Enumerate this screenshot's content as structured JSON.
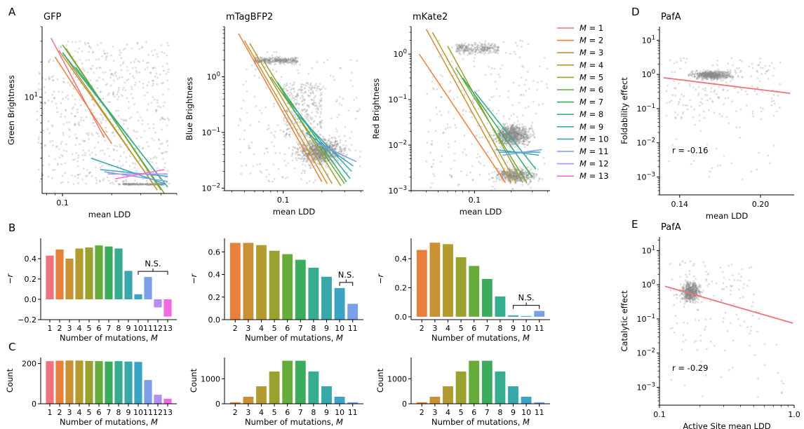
{
  "figure": {
    "panel_letters": [
      "A",
      "B",
      "C",
      "D",
      "E"
    ]
  },
  "legend": {
    "entries": [
      "M = 1",
      "M = 2",
      "M = 3",
      "M = 4",
      "M = 5",
      "M = 6",
      "M = 7",
      "M = 8",
      "M = 9",
      "M = 10",
      "M = 11",
      "M = 12",
      "M = 13"
    ],
    "colors": [
      "#f0727f",
      "#e6803a",
      "#c99136",
      "#b39b2f",
      "#9aa22f",
      "#66ac3a",
      "#3aac5c",
      "#36ad8f",
      "#38a8aa",
      "#3ba4c5",
      "#7a9ee8",
      "#b48ef0",
      "#f26ae0"
    ]
  },
  "chart_data": [
    {
      "id": "A-GFP",
      "type": "scatter",
      "title": "GFP",
      "xlabel": "mean LDD",
      "ylabel": "Green Brightness",
      "xscale": "log",
      "yscale": "log",
      "xlim": [
        0.075,
        0.5
      ],
      "ylim": [
        1.5,
        40
      ],
      "xticks": [
        {
          "v": 0.1,
          "label": "0.1"
        }
      ],
      "yticks": [
        {
          "v": 10,
          "label": "10^1"
        }
      ],
      "clusters": [
        {
          "x": [
            0.07,
            0.45
          ],
          "y": [
            1.8,
            30
          ],
          "n": 650,
          "kind": "spread"
        },
        {
          "x": [
            0.22,
            0.42
          ],
          "y": [
            1.75,
            1.85
          ],
          "n": 160,
          "kind": "band"
        }
      ],
      "series": [
        {
          "m": 1,
          "x1": 0.085,
          "y1": 32,
          "x2": 0.18,
          "y2": 4.5
        },
        {
          "m": 2,
          "x1": 0.09,
          "y1": 22,
          "x2": 0.2,
          "y2": 4.0
        },
        {
          "m": 3,
          "x1": 0.095,
          "y1": 25,
          "x2": 0.36,
          "y2": 1.8
        },
        {
          "m": 4,
          "x1": 0.1,
          "y1": 24,
          "x2": 0.38,
          "y2": 1.6
        },
        {
          "m": 5,
          "x1": 0.105,
          "y1": 26,
          "x2": 0.4,
          "y2": 1.6
        },
        {
          "m": 6,
          "x1": 0.1,
          "y1": 28,
          "x2": 0.42,
          "y2": 1.5
        },
        {
          "m": 7,
          "x1": 0.12,
          "y1": 18,
          "x2": 0.4,
          "y2": 2.0
        },
        {
          "m": 8,
          "x1": 0.1,
          "y1": 24,
          "x2": 0.44,
          "y2": 1.7
        },
        {
          "m": 9,
          "x1": 0.15,
          "y1": 3.0,
          "x2": 0.43,
          "y2": 1.8
        },
        {
          "m": 10,
          "x1": 0.17,
          "y1": 2.4,
          "x2": 0.44,
          "y2": 2.1
        },
        {
          "m": 11,
          "x1": 0.18,
          "y1": 2.3,
          "x2": 0.44,
          "y2": 1.9
        },
        {
          "m": 12,
          "x1": 0.19,
          "y1": 2.2,
          "x2": 0.44,
          "y2": 2.2
        },
        {
          "m": 13,
          "x1": 0.21,
          "y1": 2.0,
          "x2": 0.42,
          "y2": 2.4
        }
      ]
    },
    {
      "id": "A-mTagBFP2",
      "type": "scatter",
      "title": "mTagBFP2",
      "xlabel": "mean LDD",
      "ylabel": "Blue Brightness",
      "xscale": "log",
      "yscale": "log",
      "xlim": [
        0.035,
        0.42
      ],
      "ylim": [
        0.009,
        8
      ],
      "xticks": [
        {
          "v": 0.1,
          "label": "0.1"
        }
      ],
      "yticks": [
        {
          "v": 0.01,
          "label": "10^-2"
        },
        {
          "v": 0.1,
          "label": "10^-1"
        },
        {
          "v": 1,
          "label": "10^0"
        }
      ],
      "clusters": [
        {
          "x": [
            0.06,
            0.13
          ],
          "y": [
            1.5,
            2.6
          ],
          "n": 300,
          "kind": "band"
        },
        {
          "x": [
            0.1,
            0.38
          ],
          "y": [
            0.02,
            0.1
          ],
          "n": 900,
          "kind": "blob"
        },
        {
          "x": [
            0.1,
            0.2
          ],
          "y": [
            0.08,
            0.8
          ],
          "n": 300,
          "kind": "spread"
        },
        {
          "x": [
            0.045,
            0.4
          ],
          "y": [
            0.012,
            3
          ],
          "n": 200,
          "kind": "spread"
        }
      ],
      "series": [
        {
          "m": 2,
          "x1": 0.045,
          "y1": 6,
          "x2": 0.2,
          "y2": 0.013
        },
        {
          "m": 3,
          "x1": 0.05,
          "y1": 4.5,
          "x2": 0.22,
          "y2": 0.012
        },
        {
          "m": 4,
          "x1": 0.055,
          "y1": 4,
          "x2": 0.24,
          "y2": 0.012
        },
        {
          "m": 5,
          "x1": 0.07,
          "y1": 2,
          "x2": 0.28,
          "y2": 0.011
        },
        {
          "m": 6,
          "x1": 0.08,
          "y1": 1.0,
          "x2": 0.3,
          "y2": 0.012
        },
        {
          "m": 7,
          "x1": 0.09,
          "y1": 0.8,
          "x2": 0.31,
          "y2": 0.013
        },
        {
          "m": 8,
          "x1": 0.1,
          "y1": 0.5,
          "x2": 0.33,
          "y2": 0.015
        },
        {
          "m": 9,
          "x1": 0.12,
          "y1": 0.25,
          "x2": 0.34,
          "y2": 0.02
        },
        {
          "m": 10,
          "x1": 0.15,
          "y1": 0.1,
          "x2": 0.35,
          "y2": 0.025
        },
        {
          "m": 11,
          "x1": 0.18,
          "y1": 0.065,
          "x2": 0.37,
          "y2": 0.03
        }
      ]
    },
    {
      "id": "A-mKate2",
      "type": "scatter",
      "title": "mKate2",
      "xlabel": "mean LDD",
      "ylabel": "Red Brightness",
      "xscale": "log",
      "yscale": "log",
      "xlim": [
        0.03,
        0.42
      ],
      "ylim": [
        0.001,
        4
      ],
      "xticks": [
        {
          "v": 0.1,
          "label": "0.1"
        }
      ],
      "yticks": [
        {
          "v": 0.001,
          "label": "10^-3"
        },
        {
          "v": 0.01,
          "label": "10^-2"
        },
        {
          "v": 0.1,
          "label": "10^-1"
        },
        {
          "v": 1,
          "label": "10^0"
        }
      ],
      "clusters": [
        {
          "x": [
            0.07,
            0.16
          ],
          "y": [
            0.8,
            2.2
          ],
          "n": 260,
          "kind": "band"
        },
        {
          "x": [
            0.12,
            0.35
          ],
          "y": [
            0.007,
            0.04
          ],
          "n": 800,
          "kind": "blob"
        },
        {
          "x": [
            0.12,
            0.38
          ],
          "y": [
            0.0012,
            0.004
          ],
          "n": 500,
          "kind": "blob"
        },
        {
          "x": [
            0.04,
            0.4
          ],
          "y": [
            0.001,
            2
          ],
          "n": 260,
          "kind": "spread"
        }
      ],
      "series": [
        {
          "m": 2,
          "x1": 0.035,
          "y1": 1.0,
          "x2": 0.18,
          "y2": 0.0015
        },
        {
          "m": 3,
          "x1": 0.04,
          "y1": 3.5,
          "x2": 0.2,
          "y2": 0.0015
        },
        {
          "m": 4,
          "x1": 0.045,
          "y1": 3.0,
          "x2": 0.22,
          "y2": 0.0015
        },
        {
          "m": 5,
          "x1": 0.06,
          "y1": 1.5,
          "x2": 0.25,
          "y2": 0.0015
        },
        {
          "m": 6,
          "x1": 0.07,
          "y1": 0.5,
          "x2": 0.27,
          "y2": 0.0015
        },
        {
          "m": 7,
          "x1": 0.08,
          "y1": 0.3,
          "x2": 0.3,
          "y2": 0.002
        },
        {
          "m": 8,
          "x1": 0.1,
          "y1": 0.15,
          "x2": 0.32,
          "y2": 0.003
        },
        {
          "m": 9,
          "x1": 0.15,
          "y1": 0.008,
          "x2": 0.34,
          "y2": 0.006
        },
        {
          "m": 10,
          "x1": 0.16,
          "y1": 0.007,
          "x2": 0.35,
          "y2": 0.007
        },
        {
          "m": 11,
          "x1": 0.17,
          "y1": 0.006,
          "x2": 0.36,
          "y2": 0.008
        }
      ]
    },
    {
      "id": "B-GFP",
      "type": "bar",
      "xlabel": "Number of mutations, M",
      "ylabel": "−r",
      "categories": [
        "1",
        "2",
        "3",
        "4",
        "5",
        "6",
        "7",
        "8",
        "9",
        "10",
        "11",
        "12",
        "13"
      ],
      "values": [
        0.43,
        0.49,
        0.4,
        0.5,
        0.51,
        0.53,
        0.52,
        0.5,
        0.28,
        0.05,
        0.22,
        -0.08,
        -0.17
      ],
      "ylim": [
        -0.2,
        0.6
      ],
      "yticks": [
        {
          "v": -0.2,
          "label": "−0.2"
        },
        {
          "v": 0.0,
          "label": "0.0"
        },
        {
          "v": 0.2,
          "label": "0.2"
        },
        {
          "v": 0.4,
          "label": "0.4"
        }
      ],
      "annotation": {
        "text": "N.S.",
        "from": 9,
        "to": 12
      }
    },
    {
      "id": "B-mTagBFP2",
      "type": "bar",
      "xlabel": "Number of mutations, M",
      "ylabel": "−r",
      "categories": [
        "2",
        "3",
        "4",
        "5",
        "6",
        "7",
        "8",
        "9",
        "10",
        "11"
      ],
      "values": [
        0.68,
        0.68,
        0.66,
        0.61,
        0.58,
        0.53,
        0.46,
        0.38,
        0.28,
        0.14
      ],
      "ylim": [
        0.0,
        0.72
      ],
      "yticks": [
        {
          "v": 0.0,
          "label": "0.0"
        },
        {
          "v": 0.2,
          "label": "0.2"
        },
        {
          "v": 0.4,
          "label": "0.4"
        },
        {
          "v": 0.6,
          "label": "0.6"
        }
      ],
      "annotation": {
        "text": "N.S.",
        "from": 8,
        "to": 9
      }
    },
    {
      "id": "B-mKate2",
      "type": "bar",
      "xlabel": "Number of mutations, M",
      "ylabel": "−r",
      "categories": [
        "2",
        "3",
        "4",
        "5",
        "6",
        "7",
        "8",
        "9",
        "10",
        "11"
      ],
      "values": [
        0.46,
        0.51,
        0.5,
        0.41,
        0.35,
        0.26,
        0.14,
        0.01,
        0.005,
        0.04
      ],
      "ylim": [
        -0.02,
        0.54
      ],
      "yticks": [
        {
          "v": 0.0,
          "label": "0.0"
        },
        {
          "v": 0.2,
          "label": "0.2"
        },
        {
          "v": 0.4,
          "label": "0.4"
        }
      ],
      "annotation": {
        "text": "N.S.",
        "from": 7,
        "to": 9
      }
    },
    {
      "id": "C-GFP",
      "type": "bar",
      "xlabel": "Number of mutations, M",
      "ylabel": "Count",
      "categories": [
        "1",
        "2",
        "3",
        "4",
        "5",
        "6",
        "7",
        "8",
        "9",
        "10",
        "11",
        "12",
        "13"
      ],
      "values": [
        212,
        214,
        215,
        215,
        213,
        212,
        210,
        212,
        210,
        208,
        118,
        45,
        25
      ],
      "ylim": [
        0,
        230
      ],
      "yticks": [
        {
          "v": 0,
          "label": "0"
        },
        {
          "v": 200,
          "label": "200"
        }
      ]
    },
    {
      "id": "C-mTagBFP2",
      "type": "bar",
      "xlabel": "Number of mutations, M",
      "ylabel": "Count",
      "categories": [
        "2",
        "3",
        "4",
        "5",
        "6",
        "7",
        "8",
        "9",
        "10",
        "11"
      ],
      "values": [
        60,
        280,
        700,
        1290,
        1720,
        1720,
        1290,
        700,
        280,
        60
      ],
      "ylim": [
        0,
        1850
      ],
      "yticks": [
        {
          "v": 0,
          "label": "0"
        },
        {
          "v": 1000,
          "label": "1000"
        }
      ]
    },
    {
      "id": "C-mKate2",
      "type": "bar",
      "xlabel": "Number of mutations, M",
      "ylabel": "Count",
      "categories": [
        "2",
        "3",
        "4",
        "5",
        "6",
        "7",
        "8",
        "9",
        "10",
        "11"
      ],
      "values": [
        60,
        280,
        700,
        1290,
        1720,
        1720,
        1290,
        700,
        280,
        60
      ],
      "ylim": [
        0,
        1850
      ],
      "yticks": [
        {
          "v": 0,
          "label": "0"
        },
        {
          "v": 1000,
          "label": "1000"
        }
      ]
    },
    {
      "id": "D",
      "type": "scatter",
      "title": "PafA",
      "xlabel": "mean LDD",
      "ylabel": "Foldability effect",
      "xscale": "linear",
      "yscale": "log",
      "xlim": [
        0.125,
        0.225
      ],
      "ylim": [
        0.0003,
        25
      ],
      "xticks": [
        {
          "v": 0.14,
          "label": "0.14"
        },
        {
          "v": 0.2,
          "label": "0.20"
        }
      ],
      "yticks": [
        {
          "v": 0.001,
          "label": "10^-3"
        },
        {
          "v": 0.01,
          "label": "10^-2"
        },
        {
          "v": 0.1,
          "label": "10^-1"
        },
        {
          "v": 1,
          "label": "10^0"
        },
        {
          "v": 10,
          "label": "10^1"
        }
      ],
      "clusters": [
        {
          "x": [
            0.14,
            0.19
          ],
          "y": [
            0.6,
            1.5
          ],
          "n": 500,
          "kind": "blob"
        },
        {
          "x": [
            0.13,
            0.215
          ],
          "y": [
            0.05,
            3
          ],
          "n": 180,
          "kind": "spread"
        },
        {
          "x": [
            0.13,
            0.215
          ],
          "y": [
            0.0006,
            0.05
          ],
          "n": 30,
          "kind": "spread"
        }
      ],
      "series": [
        {
          "m": 1,
          "x1": 0.128,
          "y1": 0.8,
          "x2": 0.222,
          "y2": 0.28
        }
      ],
      "annotation": {
        "text": "r = -0.16"
      }
    },
    {
      "id": "E",
      "type": "scatter",
      "title": "PafA",
      "xlabel": "Active Site mean LDD",
      "ylabel": "Catalytic effect",
      "xscale": "log",
      "yscale": "log",
      "xlim": [
        0.1,
        1.0
      ],
      "ylim": [
        0.0003,
        25
      ],
      "xticks": [
        {
          "v": 0.1,
          "label": "0.1"
        },
        {
          "v": 1.0,
          "label": "1.0"
        }
      ],
      "yticks": [
        {
          "v": 0.001,
          "label": "10^-3"
        },
        {
          "v": 0.01,
          "label": "10^-2"
        },
        {
          "v": 0.1,
          "label": "10^-1"
        },
        {
          "v": 1,
          "label": "10^0"
        },
        {
          "v": 10,
          "label": "10^1"
        }
      ],
      "clusters": [
        {
          "x": [
            0.13,
            0.22
          ],
          "y": [
            0.2,
            2
          ],
          "n": 520,
          "kind": "blob"
        },
        {
          "x": [
            0.12,
            0.55
          ],
          "y": [
            0.02,
            5
          ],
          "n": 120,
          "kind": "spread"
        },
        {
          "x": [
            0.12,
            0.9
          ],
          "y": [
            0.0005,
            0.02
          ],
          "n": 25,
          "kind": "spread"
        }
      ],
      "series": [
        {
          "m": 1,
          "x1": 0.11,
          "y1": 0.9,
          "x2": 0.98,
          "y2": 0.075
        }
      ],
      "annotation": {
        "text": "r = -0.29"
      }
    }
  ]
}
